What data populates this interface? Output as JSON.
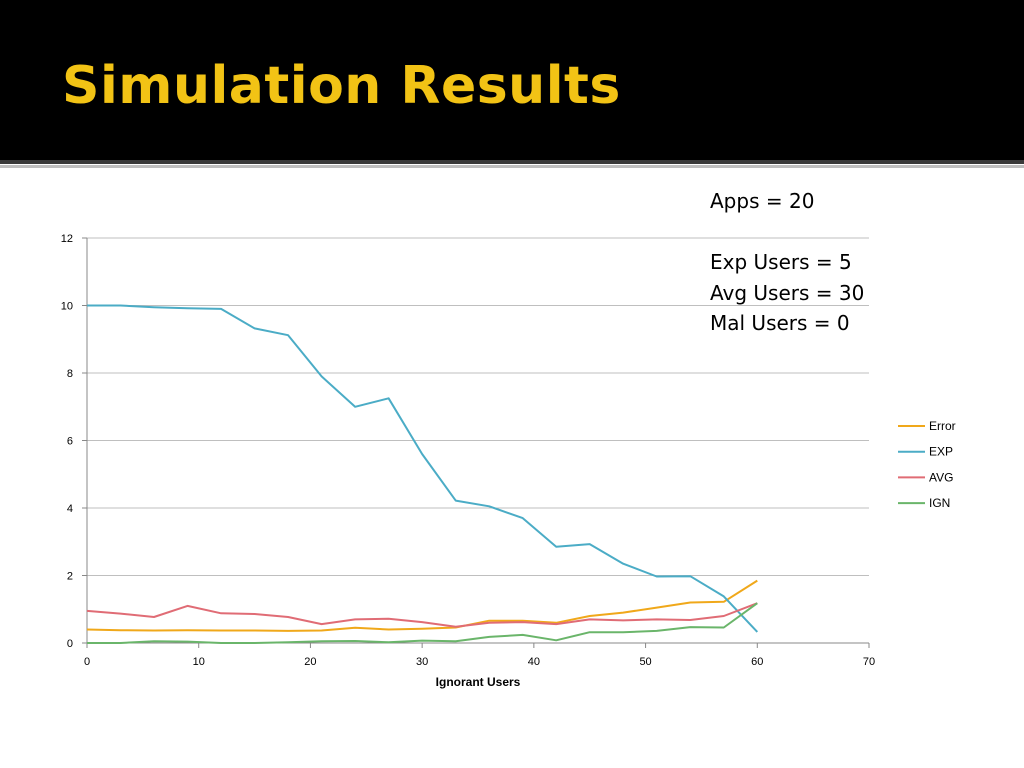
{
  "slide": {
    "title": "Simulation Results",
    "params": {
      "apps": "Apps = 20",
      "exp_users": "Exp Users = 5",
      "avg_users": "Avg Users = 30",
      "mal_users": "Mal Users = 0"
    }
  },
  "colors": {
    "title": "#f2c315",
    "grid": "#bfbfbf",
    "axis": "#888888"
  },
  "chart_data": {
    "type": "line",
    "xlabel": "Ignorant Users",
    "ylabel": "",
    "xlim": [
      0,
      70
    ],
    "ylim": [
      0,
      12
    ],
    "x_ticks": [
      0,
      10,
      20,
      30,
      40,
      50,
      60,
      70
    ],
    "y_ticks": [
      0,
      2,
      4,
      6,
      8,
      10,
      12
    ],
    "grid": true,
    "legend": "right",
    "x": [
      0,
      3,
      6,
      9,
      12,
      15,
      18,
      21,
      24,
      27,
      30,
      33,
      36,
      39,
      42,
      45,
      48,
      51,
      54,
      57,
      60
    ],
    "series": [
      {
        "name": "Error",
        "color": "#f0a81a",
        "values": [
          0.4,
          0.38,
          0.37,
          0.38,
          0.37,
          0.37,
          0.36,
          0.37,
          0.45,
          0.4,
          0.42,
          0.46,
          0.66,
          0.66,
          0.6,
          0.8,
          0.9,
          1.05,
          1.2,
          1.22,
          1.85
        ]
      },
      {
        "name": "EXP",
        "color": "#4bacc6",
        "values": [
          10.0,
          10.0,
          9.95,
          9.92,
          9.9,
          9.32,
          9.12,
          7.9,
          7.0,
          7.25,
          5.6,
          4.22,
          4.05,
          3.7,
          2.85,
          2.93,
          2.35,
          1.97,
          1.98,
          1.38,
          0.33
        ]
      },
      {
        "name": "AVG",
        "color": "#e06c75",
        "values": [
          0.95,
          0.87,
          0.77,
          1.1,
          0.88,
          0.86,
          0.77,
          0.56,
          0.7,
          0.72,
          0.62,
          0.48,
          0.6,
          0.62,
          0.56,
          0.7,
          0.67,
          0.7,
          0.68,
          0.8,
          1.18
        ]
      },
      {
        "name": "IGN",
        "color": "#6ab56a",
        "values": [
          0.0,
          0.0,
          0.05,
          0.04,
          0.0,
          0.0,
          0.02,
          0.05,
          0.06,
          0.02,
          0.07,
          0.05,
          0.18,
          0.24,
          0.08,
          0.32,
          0.32,
          0.36,
          0.47,
          0.46,
          1.18
        ]
      }
    ]
  }
}
